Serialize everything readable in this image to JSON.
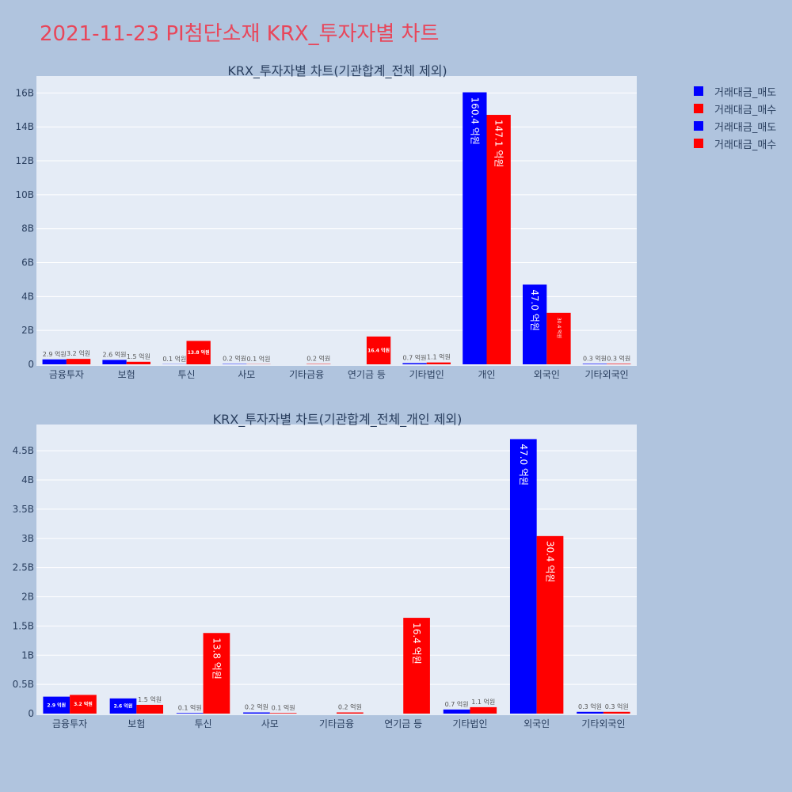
{
  "page": {
    "title": "2021-11-23 PI첨단소재 KRX_투자자별 차트"
  },
  "colors": {
    "sell": "#0000ff",
    "buy": "#ff0000",
    "plot_bg": "#e5ecf6",
    "page_bg": "#b0c4de",
    "grid": "#ffffff",
    "text": "#2a3f5f"
  },
  "legend": {
    "items": [
      {
        "label": "거래대금_매도",
        "color": "#0000ff"
      },
      {
        "label": "거래대금_매수",
        "color": "#ff0000"
      },
      {
        "label": "거래대금_매도",
        "color": "#0000ff"
      },
      {
        "label": "거래대금_매수",
        "color": "#ff0000"
      }
    ]
  },
  "chart_data": [
    {
      "type": "bar",
      "title": "KRX_투자자별 차트(기관합계_전체 제외)",
      "categories": [
        "금융투자",
        "보험",
        "투신",
        "사모",
        "기타금융",
        "연기금 등",
        "기타법인",
        "개인",
        "외국인",
        "기타외국인"
      ],
      "yticks": [
        "0",
        "2B",
        "4B",
        "6B",
        "8B",
        "10B",
        "12B",
        "14B",
        "16B"
      ],
      "ylim": [
        0,
        17.0
      ],
      "series": [
        {
          "name": "거래대금_매도",
          "values": [
            0.29,
            0.26,
            0.01,
            0.02,
            0.0,
            0.0,
            0.07,
            16.04,
            4.7,
            0.03
          ],
          "labels": [
            "2.9 억원",
            "2.6 억원",
            "0.1 억원",
            "0.2 억원",
            "",
            "",
            "0.7 억원",
            "160.4 억원",
            "47.0 억원",
            "0.3 억원"
          ]
        },
        {
          "name": "거래대금_매수",
          "values": [
            0.32,
            0.15,
            1.38,
            0.01,
            0.02,
            1.64,
            0.11,
            14.71,
            3.04,
            0.03
          ],
          "labels": [
            "3.2 억원",
            "1.5 억원",
            "13.8 억원",
            "0.1 억원",
            "0.2 억원",
            "16.4 억원",
            "1.1 억원",
            "147.1 억원",
            "30.4 억원",
            "0.3 억원"
          ]
        }
      ]
    },
    {
      "type": "bar",
      "title": "KRX_투자자별 차트(기관합계_전체_개인 제외)",
      "categories": [
        "금융투자",
        "보험",
        "투신",
        "사모",
        "기타금융",
        "연기금 등",
        "기타법인",
        "외국인",
        "기타외국인"
      ],
      "yticks": [
        "0",
        "0.5B",
        "1B",
        "1.5B",
        "2B",
        "2.5B",
        "3B",
        "3.5B",
        "4B",
        "4.5B"
      ],
      "ylim": [
        0,
        4.95
      ],
      "series": [
        {
          "name": "거래대금_매도",
          "values": [
            0.29,
            0.26,
            0.01,
            0.02,
            0.0,
            0.0,
            0.07,
            4.7,
            0.03
          ],
          "labels": [
            "2.9 억원",
            "2.6 억원",
            "0.1 억원",
            "0.2 억원",
            "",
            "",
            "0.7 억원",
            "47.0 억원",
            "0.3 억원"
          ]
        },
        {
          "name": "거래대금_매수",
          "values": [
            0.32,
            0.15,
            1.38,
            0.01,
            0.02,
            1.64,
            0.11,
            3.04,
            0.03
          ],
          "labels": [
            "3.2 억원",
            "1.5 억원",
            "13.8 억원",
            "0.1 억원",
            "0.2 억원",
            "16.4 억원",
            "1.1 억원",
            "30.4 억원",
            "0.3 억원"
          ]
        }
      ]
    }
  ]
}
